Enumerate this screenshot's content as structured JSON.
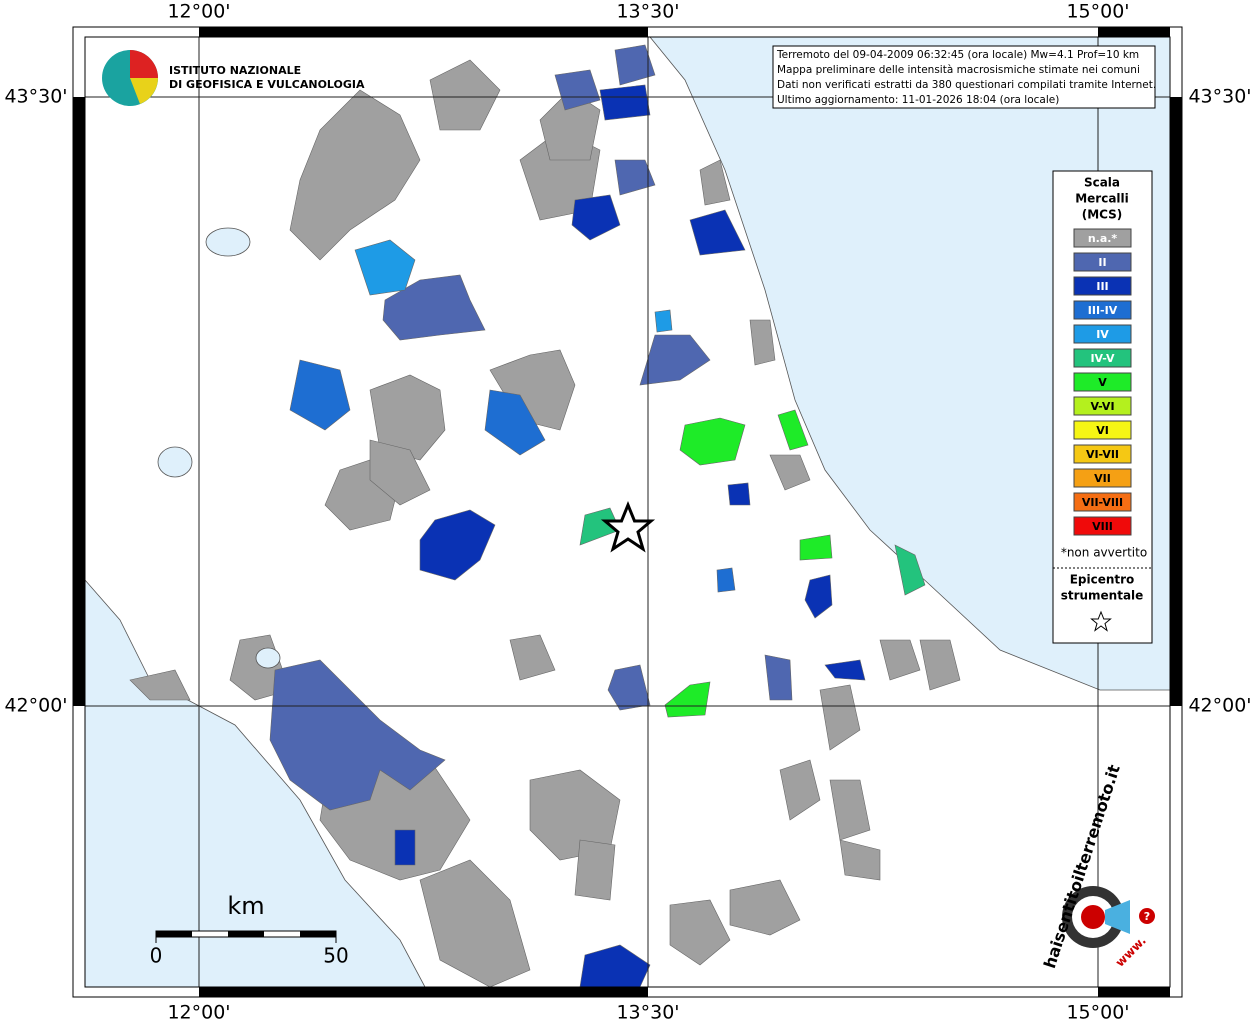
{
  "map": {
    "lon_labels": [
      "12°00'",
      "13°30'",
      "15°00'"
    ],
    "lat_labels": [
      "43°30'",
      "42°00'"
    ],
    "info_lines": [
      "Terremoto del 09-04-2009 06:32:45 (ora locale) Mw=4.1 Prof=10 km",
      "Mappa preliminare delle intensità macrosismiche stimate nei comuni",
      "Dati non verificati estratti da 380 questionari compilati tramite Internet.",
      "Ultimo aggiornamento: 11-01-2026 18:04 (ora locale)"
    ],
    "institute": [
      "ISTITUTO NAZIONALE",
      "DI GEOFISICA E VULCANOLOGIA"
    ],
    "legend": {
      "title": [
        "Scala",
        "Mercalli",
        "(MCS)"
      ],
      "items": [
        {
          "label": "n.a.*",
          "color": "#a0a0a0"
        },
        {
          "label": "II",
          "color": "#4f67b0"
        },
        {
          "label": "III",
          "color": "#0a32b4"
        },
        {
          "label": "III-IV",
          "color": "#1e6ed2"
        },
        {
          "label": "IV",
          "color": "#1e9be6"
        },
        {
          "label": "IV-V",
          "color": "#23c37d"
        },
        {
          "label": "V",
          "color": "#1eeb28"
        },
        {
          "label": "V-VI",
          "color": "#b4f01e"
        },
        {
          "label": "VI",
          "color": "#f5f514"
        },
        {
          "label": "VI-VII",
          "color": "#f5c814"
        },
        {
          "label": "VII",
          "color": "#f5a014"
        },
        {
          "label": "VII-VIII",
          "color": "#f56e14"
        },
        {
          "label": "VIII",
          "color": "#f00a0a"
        }
      ],
      "note": "*non avvertito",
      "epicenter": [
        "Epicentro",
        "strumentale"
      ]
    },
    "scale": {
      "unit": "km",
      "start": 0,
      "end": 50
    },
    "badge": {
      "site": "haisentitoilterremoto.it",
      "www": "www.",
      "mark": "?"
    }
  }
}
